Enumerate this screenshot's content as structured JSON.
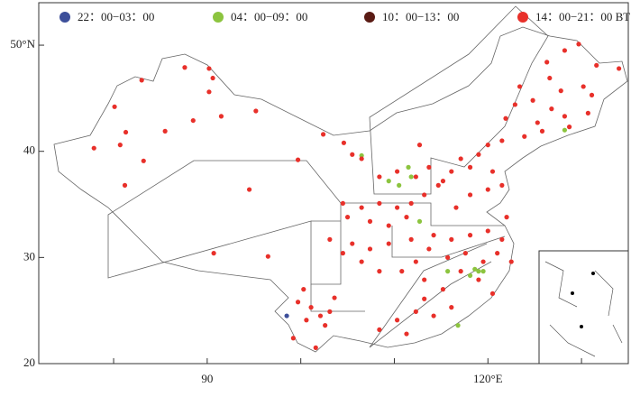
{
  "chart_data": {
    "type": "scatter",
    "xlim": [
      72,
      135
    ],
    "ylim": [
      20,
      54
    ],
    "xticks": [
      80,
      {
        "value": 90,
        "label": "90"
      },
      100,
      110,
      {
        "value": 120,
        "label": "120°E"
      },
      130
    ],
    "xtick_labeled": [
      false,
      true,
      false,
      false,
      true,
      false
    ],
    "yticks": [
      20,
      30,
      40,
      {
        "value": 50,
        "label": "50°N"
      }
    ],
    "series": [
      {
        "name": "22：00−03：00",
        "color": "#3d4f9a",
        "x": [
          98.5
        ],
        "y": [
          24.5
        ]
      },
      {
        "name": "04：00−09：00",
        "color": "#8cc43f",
        "x": [
          109.4,
          110.5,
          111.5,
          111.8,
          112.7,
          115.7,
          118.1,
          118.6,
          119.0,
          119.5,
          116.8,
          128.2,
          106.5
        ],
        "y": [
          37.2,
          36.8,
          38.5,
          37.6,
          33.4,
          28.7,
          28.3,
          28.9,
          28.7,
          28.7,
          23.6,
          42.0,
          39.6
        ]
      },
      {
        "name": "10：00−13：00",
        "color": "#5a1b14",
        "x": [],
        "y": []
      },
      {
        "name": "14：00−21：00 BT",
        "color": "#e8302a",
        "x": [
          83.0,
          87.6,
          90.2,
          90.2,
          90.6,
          80.1,
          81.3,
          80.7,
          77.9,
          83.2,
          85.5,
          88.5,
          91.5,
          95.2,
          81.2,
          94.5,
          90.7,
          96.5,
          102.4,
          104.6,
          99.7,
          105.5,
          106.5,
          126.3,
          128.2,
          129.7,
          131.6,
          134.0,
          123.4,
          124.8,
          126.8,
          128.2,
          130.7,
          125.3,
          123.9,
          125.8,
          127.8,
          130.2,
          121.9,
          122.9,
          131.1,
          120.0,
          121.5,
          128.7,
          126.6,
          116.1,
          117.1,
          118.1,
          119.0,
          120.5,
          121.5,
          120.0,
          118.1,
          116.6,
          115.2,
          114.7,
          113.2,
          111.8,
          110.3,
          108.4,
          106.5,
          104.5,
          105.0,
          107.4,
          109.4,
          111.3,
          112.7,
          113.7,
          112.3,
          108.4,
          110.3,
          114.2,
          116.1,
          118.1,
          120.0,
          121.5,
          121.0,
          119.5,
          117.6,
          115.7,
          113.7,
          112.3,
          110.8,
          113.2,
          115.2,
          117.1,
          119.0,
          120.5,
          116.1,
          114.2,
          112.3,
          110.3,
          108.4,
          111.3,
          113.2,
          108.4,
          106.5,
          104.5,
          103.1,
          105.5,
          107.4,
          109.4,
          111.8,
          122.0,
          122.5,
          99.7,
          101.1,
          102.1,
          103.1,
          100.6,
          102.6,
          101.6,
          99.2,
          103.6,
          100.3
        ],
        "y": [
          46.7,
          47.9,
          47.8,
          45.6,
          46.9,
          44.2,
          41.8,
          40.6,
          40.3,
          39.1,
          41.9,
          42.9,
          43.3,
          43.8,
          36.8,
          36.4,
          30.4,
          30.1,
          41.6,
          40.8,
          39.2,
          39.7,
          39.3,
          48.4,
          49.5,
          50.1,
          48.1,
          47.8,
          46.1,
          44.8,
          44.0,
          43.3,
          43.6,
          42.7,
          41.4,
          41.9,
          45.7,
          46.1,
          43.1,
          44.4,
          45.3,
          40.6,
          41.0,
          42.3,
          46.9,
          38.1,
          39.3,
          38.5,
          39.7,
          38.1,
          36.8,
          36.4,
          35.9,
          34.7,
          37.2,
          36.8,
          35.9,
          35.1,
          34.7,
          35.1,
          34.7,
          35.1,
          33.8,
          33.4,
          33.0,
          33.8,
          40.6,
          38.5,
          37.6,
          37.6,
          38.1,
          32.1,
          31.7,
          32.1,
          32.5,
          31.7,
          30.4,
          29.6,
          30.4,
          30.0,
          30.8,
          29.6,
          28.7,
          27.9,
          27.0,
          28.7,
          27.9,
          26.6,
          25.3,
          24.5,
          24.9,
          24.1,
          23.2,
          22.8,
          26.1,
          28.7,
          29.6,
          30.4,
          31.7,
          31.3,
          30.8,
          31.3,
          31.7,
          33.8,
          29.6,
          25.8,
          25.3,
          24.5,
          24.9,
          24.1,
          23.6,
          21.5,
          22.4,
          26.2,
          27.0
        ]
      }
    ]
  }
}
